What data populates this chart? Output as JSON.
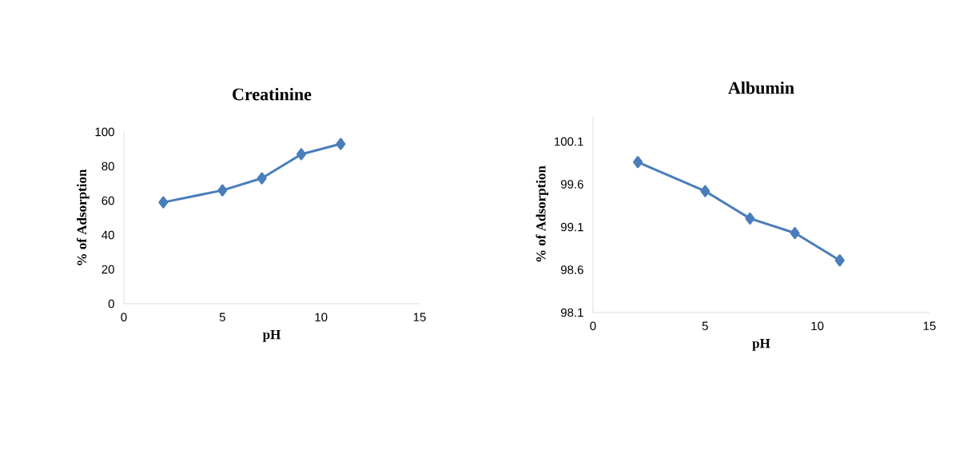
{
  "chart_data": [
    {
      "type": "line",
      "title": "Creatinine",
      "xlabel": "pH",
      "ylabel": "% of Adsorption",
      "color": "#4a7ebb",
      "marker": "diamond",
      "x": [
        2,
        5,
        7,
        9,
        11
      ],
      "values": [
        59,
        66,
        73,
        87,
        93
      ],
      "xlim": [
        0,
        15
      ],
      "ylim": [
        0,
        100
      ],
      "xticks": [
        0,
        5,
        10,
        15
      ],
      "yticks": [
        0,
        20,
        40,
        60,
        80,
        100
      ]
    },
    {
      "type": "line",
      "title": "Albumin",
      "xlabel": "pH",
      "ylabel": "% of Adsorption",
      "color": "#4a7ebb",
      "marker": "diamond",
      "x": [
        2,
        5,
        7,
        9,
        11
      ],
      "values": [
        99.86,
        99.52,
        99.2,
        99.03,
        98.71
      ],
      "xlim": [
        0,
        15
      ],
      "ylim": [
        98.1,
        100.4
      ],
      "xticks": [
        0,
        5,
        10,
        15
      ],
      "yticks": [
        98.1,
        98.6,
        99.1,
        99.6,
        100.1
      ]
    }
  ]
}
